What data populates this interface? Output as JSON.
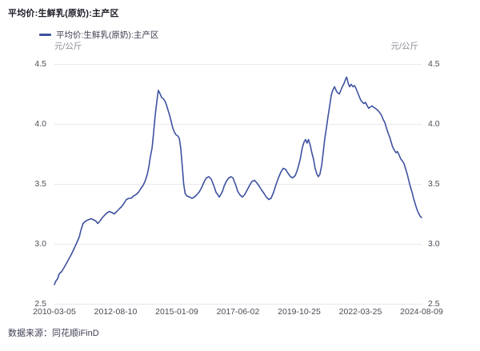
{
  "header": {
    "title": "平均价:生鲜乳(原奶):主产区"
  },
  "legend": {
    "label": "平均价:生鲜乳(原奶):主产区"
  },
  "footer": {
    "source": "数据来源：同花顺iFinD"
  },
  "chart_data": {
    "type": "line",
    "title": "平均价:生鲜乳(原奶):主产区",
    "series_name": "平均价:生鲜乳(原奶):主产区",
    "unit": "元/公斤",
    "legend_position": "top-left",
    "grid": "horizontal",
    "line_color": "#3E51A0",
    "grid_color": "#E9E9EF",
    "tick_color": "#4C4C56",
    "ylim": [
      2.5,
      4.5
    ],
    "y_ticks": [
      {
        "label": "4.5",
        "value": 4.5
      },
      {
        "label": "4.0",
        "value": 4.0
      },
      {
        "label": "3.5",
        "value": 3.5
      },
      {
        "label": "3.0",
        "value": 3.0
      },
      {
        "label": "2.5",
        "value": 2.5
      }
    ],
    "x_ticks": [
      "2010-03-05",
      "2012-08-10",
      "2015-01-09",
      "2017-06-02",
      "2019-10-25",
      "2022-03-25",
      "2024-08-09"
    ],
    "points": [
      [
        0.0,
        2.66
      ],
      [
        0.004,
        2.69
      ],
      [
        0.009,
        2.71
      ],
      [
        0.013,
        2.75
      ],
      [
        0.02,
        2.77
      ],
      [
        0.026,
        2.8
      ],
      [
        0.035,
        2.85
      ],
      [
        0.044,
        2.9
      ],
      [
        0.052,
        2.95
      ],
      [
        0.061,
        3.01
      ],
      [
        0.068,
        3.06
      ],
      [
        0.072,
        3.11
      ],
      [
        0.078,
        3.17
      ],
      [
        0.085,
        3.19
      ],
      [
        0.092,
        3.2
      ],
      [
        0.1,
        3.21
      ],
      [
        0.107,
        3.2
      ],
      [
        0.113,
        3.19
      ],
      [
        0.118,
        3.17
      ],
      [
        0.124,
        3.19
      ],
      [
        0.131,
        3.22
      ],
      [
        0.137,
        3.24
      ],
      [
        0.144,
        3.26
      ],
      [
        0.15,
        3.27
      ],
      [
        0.157,
        3.26
      ],
      [
        0.163,
        3.25
      ],
      [
        0.17,
        3.27
      ],
      [
        0.176,
        3.29
      ],
      [
        0.183,
        3.31
      ],
      [
        0.19,
        3.34
      ],
      [
        0.196,
        3.37
      ],
      [
        0.203,
        3.38
      ],
      [
        0.209,
        3.38
      ],
      [
        0.216,
        3.4
      ],
      [
        0.222,
        3.41
      ],
      [
        0.229,
        3.43
      ],
      [
        0.235,
        3.46
      ],
      [
        0.242,
        3.49
      ],
      [
        0.248,
        3.53
      ],
      [
        0.253,
        3.58
      ],
      [
        0.257,
        3.64
      ],
      [
        0.261,
        3.72
      ],
      [
        0.266,
        3.8
      ],
      [
        0.27,
        3.92
      ],
      [
        0.274,
        4.06
      ],
      [
        0.279,
        4.19
      ],
      [
        0.283,
        4.28
      ],
      [
        0.288,
        4.25
      ],
      [
        0.292,
        4.22
      ],
      [
        0.297,
        4.21
      ],
      [
        0.301,
        4.19
      ],
      [
        0.305,
        4.16
      ],
      [
        0.309,
        4.12
      ],
      [
        0.314,
        4.07
      ],
      [
        0.318,
        4.02
      ],
      [
        0.322,
        3.97
      ],
      [
        0.327,
        3.93
      ],
      [
        0.331,
        3.91
      ],
      [
        0.336,
        3.9
      ],
      [
        0.34,
        3.88
      ],
      [
        0.344,
        3.8
      ],
      [
        0.348,
        3.66
      ],
      [
        0.352,
        3.5
      ],
      [
        0.356,
        3.42
      ],
      [
        0.361,
        3.4
      ],
      [
        0.368,
        3.39
      ],
      [
        0.375,
        3.38
      ],
      [
        0.381,
        3.39
      ],
      [
        0.388,
        3.41
      ],
      [
        0.394,
        3.43
      ],
      [
        0.401,
        3.47
      ],
      [
        0.408,
        3.52
      ],
      [
        0.414,
        3.55
      ],
      [
        0.421,
        3.56
      ],
      [
        0.427,
        3.54
      ],
      [
        0.431,
        3.51
      ],
      [
        0.436,
        3.47
      ],
      [
        0.44,
        3.43
      ],
      [
        0.445,
        3.41
      ],
      [
        0.449,
        3.39
      ],
      [
        0.453,
        3.41
      ],
      [
        0.458,
        3.44
      ],
      [
        0.462,
        3.48
      ],
      [
        0.468,
        3.52
      ],
      [
        0.475,
        3.55
      ],
      [
        0.481,
        3.56
      ],
      [
        0.486,
        3.55
      ],
      [
        0.49,
        3.52
      ],
      [
        0.495,
        3.48
      ],
      [
        0.499,
        3.44
      ],
      [
        0.505,
        3.41
      ],
      [
        0.512,
        3.39
      ],
      [
        0.518,
        3.41
      ],
      [
        0.525,
        3.45
      ],
      [
        0.532,
        3.49
      ],
      [
        0.538,
        3.52
      ],
      [
        0.545,
        3.53
      ],
      [
        0.551,
        3.51
      ],
      [
        0.558,
        3.48
      ],
      [
        0.564,
        3.45
      ],
      [
        0.571,
        3.42
      ],
      [
        0.577,
        3.39
      ],
      [
        0.584,
        3.37
      ],
      [
        0.59,
        3.38
      ],
      [
        0.597,
        3.43
      ],
      [
        0.603,
        3.49
      ],
      [
        0.61,
        3.55
      ],
      [
        0.617,
        3.6
      ],
      [
        0.623,
        3.63
      ],
      [
        0.63,
        3.62
      ],
      [
        0.636,
        3.59
      ],
      [
        0.643,
        3.56
      ],
      [
        0.649,
        3.55
      ],
      [
        0.656,
        3.57
      ],
      [
        0.662,
        3.62
      ],
      [
        0.669,
        3.7
      ],
      [
        0.675,
        3.8
      ],
      [
        0.68,
        3.85
      ],
      [
        0.684,
        3.87
      ],
      [
        0.688,
        3.84
      ],
      [
        0.692,
        3.87
      ],
      [
        0.697,
        3.82
      ],
      [
        0.701,
        3.76
      ],
      [
        0.706,
        3.7
      ],
      [
        0.71,
        3.63
      ],
      [
        0.715,
        3.58
      ],
      [
        0.719,
        3.56
      ],
      [
        0.723,
        3.58
      ],
      [
        0.728,
        3.66
      ],
      [
        0.732,
        3.76
      ],
      [
        0.736,
        3.87
      ],
      [
        0.741,
        3.97
      ],
      [
        0.745,
        4.06
      ],
      [
        0.75,
        4.16
      ],
      [
        0.754,
        4.24
      ],
      [
        0.758,
        4.28
      ],
      [
        0.763,
        4.31
      ],
      [
        0.767,
        4.28
      ],
      [
        0.771,
        4.26
      ],
      [
        0.776,
        4.25
      ],
      [
        0.78,
        4.28
      ],
      [
        0.784,
        4.31
      ],
      [
        0.789,
        4.34
      ],
      [
        0.794,
        4.38
      ],
      [
        0.796,
        4.39
      ],
      [
        0.8,
        4.34
      ],
      [
        0.804,
        4.31
      ],
      [
        0.808,
        4.33
      ],
      [
        0.813,
        4.31
      ],
      [
        0.817,
        4.32
      ],
      [
        0.821,
        4.3
      ],
      [
        0.826,
        4.26
      ],
      [
        0.83,
        4.23
      ],
      [
        0.834,
        4.2
      ],
      [
        0.839,
        4.18
      ],
      [
        0.843,
        4.17
      ],
      [
        0.847,
        4.18
      ],
      [
        0.852,
        4.15
      ],
      [
        0.856,
        4.13
      ],
      [
        0.86,
        4.14
      ],
      [
        0.865,
        4.15
      ],
      [
        0.869,
        4.14
      ],
      [
        0.874,
        4.13
      ],
      [
        0.878,
        4.12
      ],
      [
        0.882,
        4.11
      ],
      [
        0.887,
        4.09
      ],
      [
        0.891,
        4.07
      ],
      [
        0.895,
        4.04
      ],
      [
        0.9,
        4.01
      ],
      [
        0.904,
        3.97
      ],
      [
        0.908,
        3.93
      ],
      [
        0.913,
        3.89
      ],
      [
        0.917,
        3.85
      ],
      [
        0.921,
        3.81
      ],
      [
        0.926,
        3.78
      ],
      [
        0.93,
        3.76
      ],
      [
        0.934,
        3.77
      ],
      [
        0.939,
        3.74
      ],
      [
        0.943,
        3.71
      ],
      [
        0.948,
        3.69
      ],
      [
        0.952,
        3.67
      ],
      [
        0.956,
        3.63
      ],
      [
        0.961,
        3.58
      ],
      [
        0.965,
        3.53
      ],
      [
        0.969,
        3.48
      ],
      [
        0.974,
        3.43
      ],
      [
        0.978,
        3.38
      ],
      [
        0.983,
        3.33
      ],
      [
        0.987,
        3.29
      ],
      [
        0.991,
        3.26
      ],
      [
        0.996,
        3.23
      ],
      [
        1.0,
        3.22
      ]
    ]
  }
}
